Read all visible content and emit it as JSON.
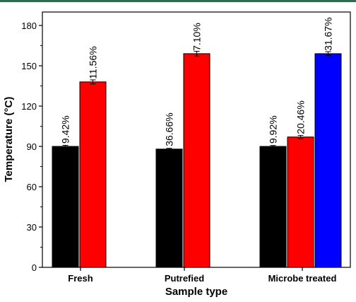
{
  "chart_data": {
    "type": "bar",
    "xlabel": "Sample type",
    "ylabel": "Temperature (°C)",
    "ylim": [
      0,
      190
    ],
    "yticks": [
      0,
      30,
      60,
      90,
      120,
      150,
      180
    ],
    "grid": false,
    "legend": "none",
    "categories": [
      "Fresh",
      "Putrefied",
      "Microbe treated"
    ],
    "bars": [
      {
        "category": "Fresh",
        "value": 90,
        "error": 0.8,
        "label": "9.42%",
        "color": "#000000"
      },
      {
        "category": "Fresh",
        "value": 138,
        "error": 1.5,
        "label": "11.56%",
        "color": "#ff0000"
      },
      {
        "category": "Putrefied",
        "value": 88,
        "error": 0.6,
        "label": "36.66%",
        "color": "#000000"
      },
      {
        "category": "Putrefied",
        "value": 159,
        "error": 1.8,
        "label": "7.10%",
        "color": "#ff0000"
      },
      {
        "category": "Microbe treated",
        "value": 90,
        "error": 0.7,
        "label": "9.92%",
        "color": "#000000"
      },
      {
        "category": "Microbe treated",
        "value": 97,
        "error": 1.2,
        "label": "20.46%",
        "color": "#ff0000"
      },
      {
        "category": "Microbe treated",
        "value": 159,
        "error": 1.5,
        "label": "31.67%",
        "color": "#0000ff"
      }
    ]
  }
}
